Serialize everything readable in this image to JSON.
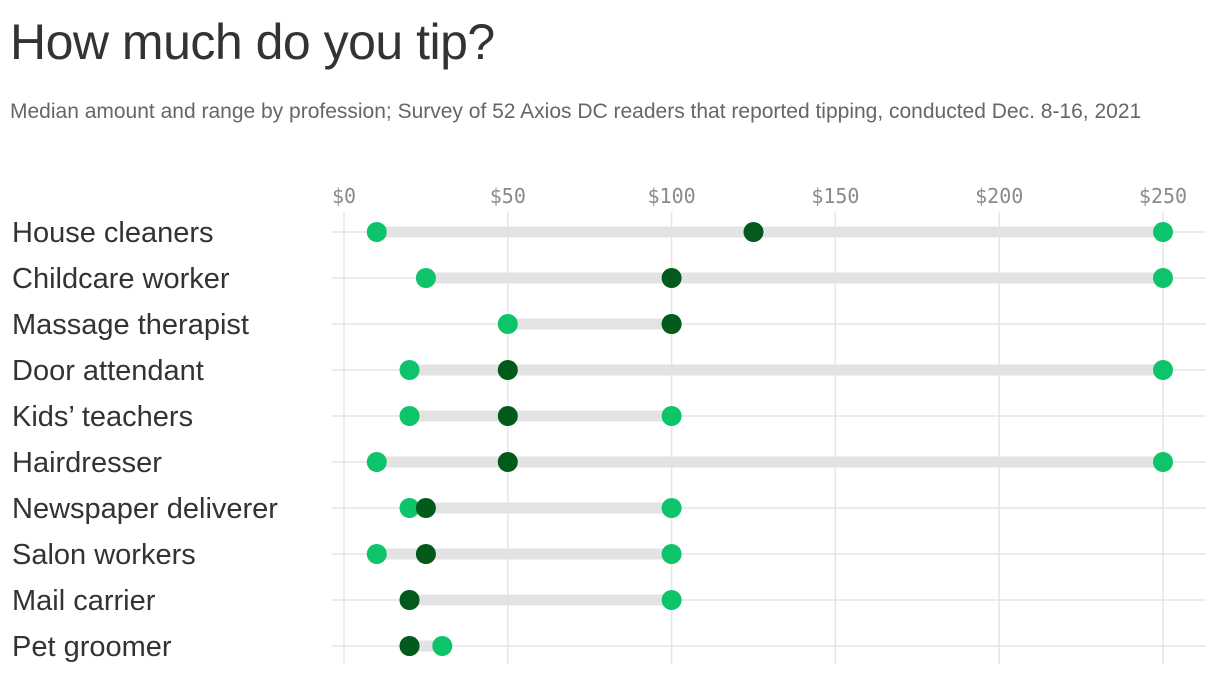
{
  "header": {
    "title": "How much do you tip?",
    "subtitle": "Median amount and range by profession; Survey of 52 Axios DC readers that reported tipping, conducted Dec. 8-16, 2021"
  },
  "colors": {
    "range_dot": "#0dc46b",
    "median_dot": "#025a1b",
    "range_bar": "#e3e3e3",
    "gridline": "#e5e5e5"
  },
  "chart_data": {
    "type": "scatter",
    "subtype": "dot-range",
    "title": "How much do you tip?",
    "subtitle": "Median amount and range by profession; Survey of 52 Axios DC readers that reported tipping, conducted Dec. 8-16, 2021",
    "xlim": [
      0,
      250
    ],
    "x_ticks": [
      0,
      50,
      100,
      150,
      200,
      250
    ],
    "x_tick_labels": [
      "$0",
      "$50",
      "$100",
      "$150",
      "$200",
      "$250"
    ],
    "x_axis_position": "top",
    "grid": true,
    "categories": [
      "House cleaners",
      "Childcare worker",
      "Massage therapist",
      "Door attendant",
      "Kids’ teachers",
      "Hairdresser",
      "Newspaper deliverer",
      "Salon workers",
      "Mail carrier",
      "Pet groomer"
    ],
    "min": [
      10,
      25,
      50,
      20,
      20,
      10,
      20,
      10,
      20,
      20
    ],
    "median": [
      125,
      100,
      100,
      50,
      50,
      50,
      25,
      25,
      20,
      20
    ],
    "max": [
      250,
      250,
      100,
      250,
      100,
      250,
      100,
      100,
      100,
      30
    ]
  }
}
